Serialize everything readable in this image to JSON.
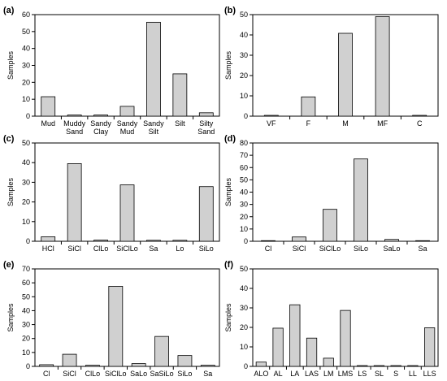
{
  "chart_data": [
    {
      "panel": "(a)",
      "type": "bar",
      "categories": [
        "Mud",
        "Muddy\nSand",
        "Sandy\nClay",
        "Sandy\nMud",
        "Sandy\nSilt",
        "Silt",
        "Silty\nSand"
      ],
      "values": [
        11.5,
        0.7,
        0.7,
        5.8,
        55.5,
        25,
        2
      ],
      "ylabel": "Samples",
      "ylim": [
        0,
        60
      ],
      "yticks": [
        0,
        10,
        20,
        30,
        40,
        50,
        60
      ]
    },
    {
      "panel": "(b)",
      "type": "bar",
      "categories": [
        "VF",
        "F",
        "M",
        "MF",
        "C"
      ],
      "values": [
        0.4,
        9.5,
        40.8,
        49,
        0.4
      ],
      "ylabel": "Samples",
      "ylim": [
        0,
        50
      ],
      "yticks": [
        0,
        10,
        20,
        30,
        40,
        50
      ]
    },
    {
      "panel": "(c)",
      "type": "bar",
      "categories": [
        "HCl",
        "SiCl",
        "ClLo",
        "SiClLo",
        "Sa",
        "Lo",
        "SiLo"
      ],
      "values": [
        2.3,
        39.5,
        0.6,
        28.7,
        0.5,
        0.5,
        27.8
      ],
      "ylabel": "Samples",
      "ylim": [
        0,
        50
      ],
      "yticks": [
        0,
        10,
        20,
        30,
        40,
        50
      ]
    },
    {
      "panel": "(d)",
      "type": "bar",
      "categories": [
        "Cl",
        "SiCl",
        "SiClLo",
        "SiLo",
        "SaLo",
        "Sa"
      ],
      "values": [
        0.5,
        3.5,
        26,
        67,
        1.5,
        0.5
      ],
      "ylabel": "Samples",
      "ylim": [
        0,
        80
      ],
      "yticks": [
        0,
        10,
        20,
        30,
        40,
        50,
        60,
        70,
        80
      ]
    },
    {
      "panel": "(e)",
      "type": "bar",
      "categories": [
        "Cl",
        "SiCl",
        "ClLo",
        "SiClLo",
        "SaLo",
        "SaSiLo",
        "SiLo",
        "Sa"
      ],
      "values": [
        1.2,
        8.7,
        0.8,
        57.5,
        2,
        21.5,
        7.8,
        0.8
      ],
      "ylabel": "Samples",
      "ylim": [
        0,
        70
      ],
      "yticks": [
        0,
        10,
        20,
        30,
        40,
        50,
        60,
        70
      ]
    },
    {
      "panel": "(f)",
      "type": "bar",
      "categories": [
        "ALO",
        "AL",
        "LA",
        "LAS",
        "LM",
        "LMS",
        "LS",
        "SL",
        "S",
        "LL",
        "LLS"
      ],
      "values": [
        2.2,
        19.6,
        31.6,
        14.5,
        4.2,
        28.7,
        0.4,
        0.4,
        0.4,
        0.4,
        19.8
      ],
      "ylabel": "Samples",
      "ylim": [
        0,
        50
      ],
      "yticks": [
        0,
        10,
        20,
        30,
        40,
        50
      ]
    }
  ]
}
